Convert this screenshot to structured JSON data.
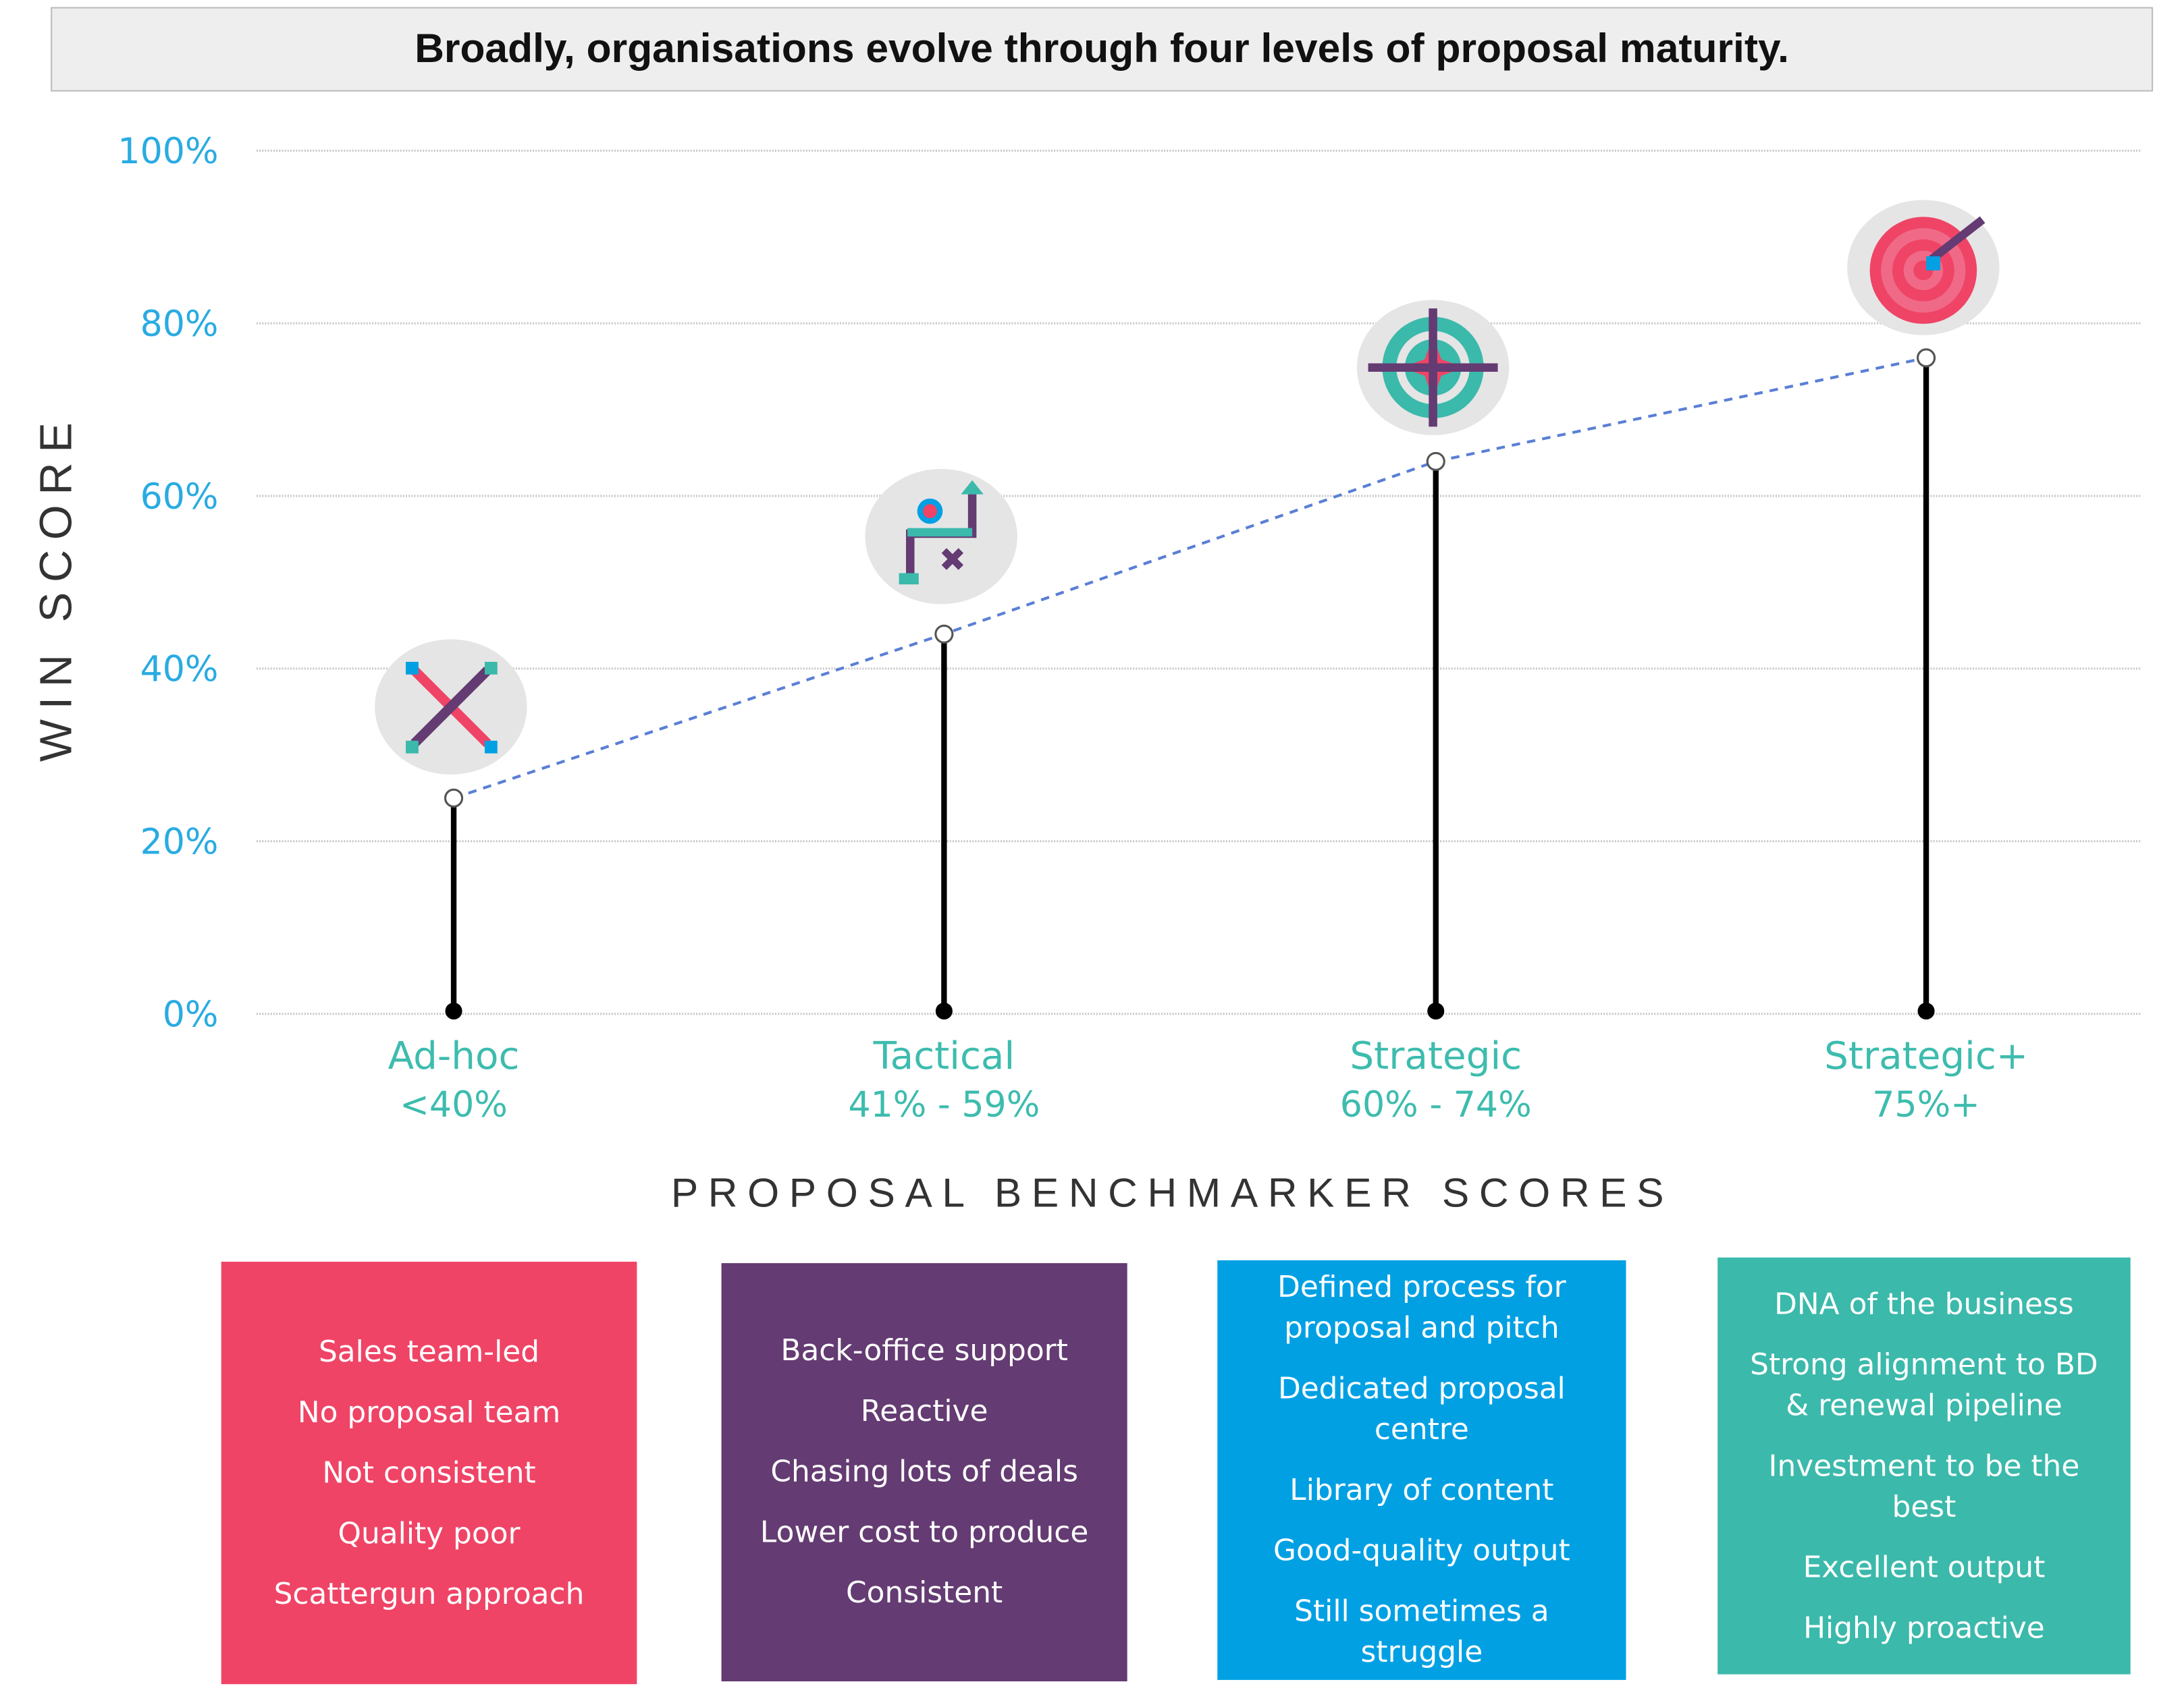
{
  "title": "Broadly, organisations evolve through four levels of proposal maturity.",
  "chart_data": {
    "type": "lollipop",
    "ylabel": "WIN SCORE",
    "xlabel": "PROPOSAL BENCHMARKER SCORES",
    "ylim": [
      0,
      100
    ],
    "yticks": [
      "0%",
      "20%",
      "40%",
      "60%",
      "80%",
      "100%"
    ],
    "grid": true,
    "categories": [
      {
        "name": "Ad-hoc",
        "range": "<40%",
        "icon": "crossed-arrows-icon"
      },
      {
        "name": "Tactical",
        "range": "41% - 59%",
        "icon": "strategy-path-icon"
      },
      {
        "name": "Strategic",
        "range": "60% - 74%",
        "icon": "crosshair-icon"
      },
      {
        "name": "Strategic+",
        "range": "75%+",
        "icon": "bullseye-target-icon"
      }
    ],
    "values": [
      25,
      44,
      64,
      76
    ],
    "trend_line": "dashed"
  },
  "boxes": [
    {
      "color": "#ef4466",
      "items": [
        "Sales team-led",
        "No proposal team",
        "Not consistent",
        "Quality poor",
        "Scattergun approach"
      ]
    },
    {
      "color": "#643b72",
      "items": [
        "Back-office support",
        "Reactive",
        "Chasing lots of deals",
        "Lower cost to produce",
        "Consistent"
      ]
    },
    {
      "color": "#00a0e3",
      "items": [
        "Defined process for proposal and pitch",
        "Dedicated proposal centre",
        "Library of content",
        "Good-quality output",
        "Still sometimes a struggle"
      ]
    },
    {
      "color": "#3bb9ab",
      "items": [
        "DNA of the business",
        "Strong alignment to BD & renewal pipeline",
        "Investment to be the best",
        "Excellent output",
        "Highly proactive"
      ]
    }
  ],
  "colors": {
    "axis_labels": "#29abe2",
    "category_labels": "#3dbcae",
    "trend": "#5b7fd6"
  }
}
